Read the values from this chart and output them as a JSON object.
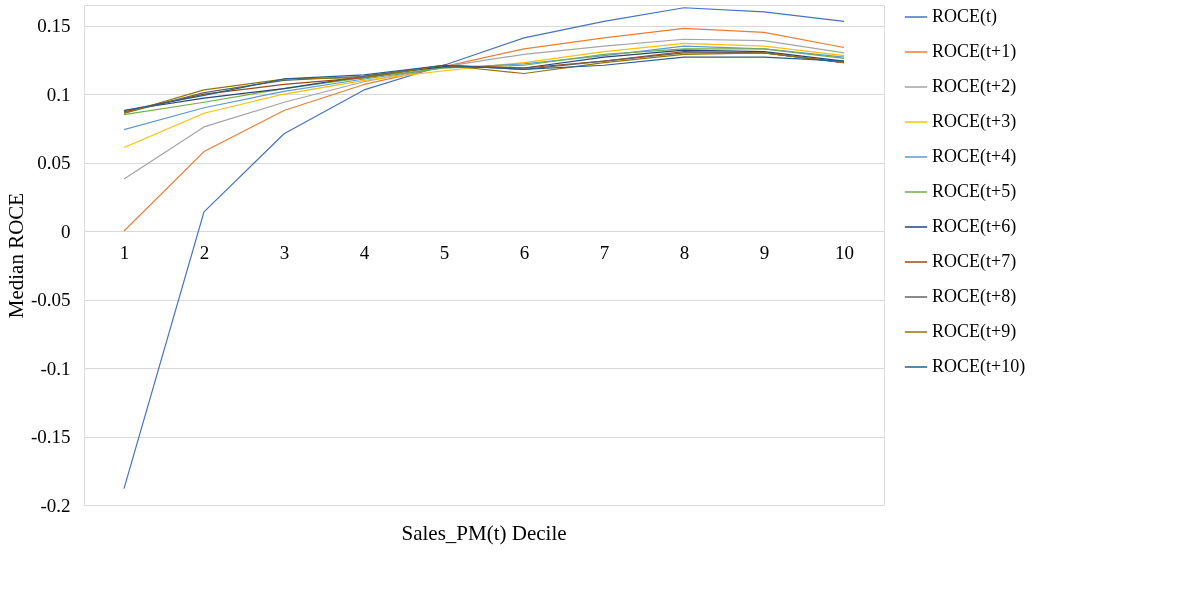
{
  "chart_data": {
    "type": "line",
    "xlabel": "Sales_PM(t) Decile",
    "ylabel": "Median ROCE",
    "categories": [
      "1",
      "2",
      "3",
      "4",
      "5",
      "6",
      "7",
      "8",
      "9",
      "10"
    ],
    "ylim": [
      -0.2,
      0.165
    ],
    "yticks": [
      -0.2,
      -0.15,
      -0.1,
      -0.05,
      0,
      0.05,
      0.1,
      0.15
    ],
    "grid": "y",
    "legend": "right",
    "marker": "none",
    "line_style": "solid",
    "series": [
      {
        "name": "ROCE(t)",
        "color": "#4472c4",
        "values": [
          -0.188,
          0.014,
          0.071,
          0.103,
          0.121,
          0.141,
          0.153,
          0.163,
          0.16,
          0.153
        ]
      },
      {
        "name": "ROCE(t+1)",
        "color": "#ed7d31",
        "values": [
          0.0,
          0.058,
          0.088,
          0.107,
          0.12,
          0.133,
          0.141,
          0.148,
          0.145,
          0.134
        ]
      },
      {
        "name": "ROCE(t+2)",
        "color": "#a5a5a5",
        "values": [
          0.038,
          0.076,
          0.094,
          0.109,
          0.12,
          0.129,
          0.135,
          0.14,
          0.139,
          0.13
        ]
      },
      {
        "name": "ROCE(t+3)",
        "color": "#ffc000",
        "values": [
          0.061,
          0.086,
          0.1,
          0.11,
          0.117,
          0.123,
          0.131,
          0.137,
          0.135,
          0.128
        ]
      },
      {
        "name": "ROCE(t+4)",
        "color": "#5b9bd5",
        "values": [
          0.074,
          0.09,
          0.102,
          0.111,
          0.119,
          0.122,
          0.128,
          0.135,
          0.133,
          0.127
        ]
      },
      {
        "name": "ROCE(t+5)",
        "color": "#70ad47",
        "values": [
          0.085,
          0.094,
          0.104,
          0.112,
          0.119,
          0.121,
          0.129,
          0.133,
          0.133,
          0.126
        ]
      },
      {
        "name": "ROCE(t+6)",
        "color": "#264478",
        "values": [
          0.088,
          0.097,
          0.104,
          0.113,
          0.12,
          0.119,
          0.127,
          0.132,
          0.131,
          0.124
        ]
      },
      {
        "name": "ROCE(t+7)",
        "color": "#9e480e",
        "values": [
          0.087,
          0.1,
          0.107,
          0.112,
          0.121,
          0.119,
          0.124,
          0.131,
          0.13,
          0.123
        ]
      },
      {
        "name": "ROCE(t+8)",
        "color": "#636363",
        "values": [
          0.086,
          0.101,
          0.11,
          0.113,
          0.121,
          0.118,
          0.124,
          0.13,
          0.13,
          0.123
        ]
      },
      {
        "name": "ROCE(t+9)",
        "color": "#997300",
        "values": [
          0.086,
          0.103,
          0.111,
          0.112,
          0.121,
          0.115,
          0.123,
          0.129,
          0.13,
          0.123
        ]
      },
      {
        "name": "ROCE(t+10)",
        "color": "#255e91",
        "values": [
          0.088,
          0.099,
          0.111,
          0.114,
          0.121,
          0.118,
          0.121,
          0.127,
          0.127,
          0.124
        ]
      }
    ]
  }
}
